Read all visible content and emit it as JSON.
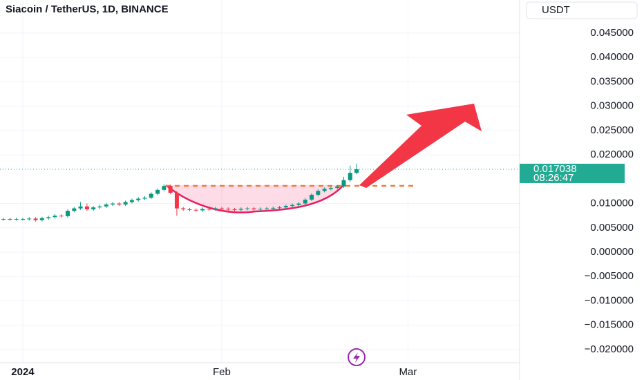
{
  "chart_data": {
    "type": "candlestick",
    "title": "Siacoin / TetherUS, 1D, BINANCE",
    "currency": "USDT",
    "countdown": "08:26:47",
    "up_color": "#089981",
    "down_color": "#f23645",
    "x": [
      -3,
      -2,
      -1,
      0,
      1,
      2,
      3,
      4,
      5,
      6,
      7,
      8,
      9,
      10,
      11,
      12,
      13,
      14,
      15,
      16,
      17,
      18,
      19,
      20,
      21,
      22,
      23,
      24,
      25,
      26,
      27,
      28,
      29,
      30,
      31,
      32,
      33,
      34,
      35,
      36,
      37,
      38,
      39,
      40,
      41,
      42,
      43,
      44,
      45,
      46,
      47,
      48,
      49,
      50,
      51,
      52
    ],
    "open": [
      0.0068,
      0.0068,
      0.0068,
      0.0068,
      0.0068,
      0.0069,
      0.0066,
      0.007,
      0.0072,
      0.0075,
      0.0074,
      0.0085,
      0.009,
      0.0094,
      0.0088,
      0.0092,
      0.0094,
      0.0098,
      0.01,
      0.0098,
      0.0103,
      0.0107,
      0.011,
      0.0112,
      0.012,
      0.0128,
      0.0136,
      0.0122,
      0.009,
      0.0088,
      0.0087,
      0.0086,
      0.0089,
      0.0088,
      0.009,
      0.0089,
      0.0088,
      0.0087,
      0.0089,
      0.009,
      0.0088,
      0.0089,
      0.009,
      0.0091,
      0.0092,
      0.0095,
      0.0097,
      0.01,
      0.0108,
      0.0118,
      0.0126,
      0.013,
      0.0132,
      0.0135,
      0.0148,
      0.0163
    ],
    "high": [
      0.0071,
      0.0071,
      0.0071,
      0.0071,
      0.0072,
      0.0072,
      0.0073,
      0.0075,
      0.0078,
      0.0078,
      0.0088,
      0.0093,
      0.0103,
      0.01,
      0.0095,
      0.0097,
      0.0101,
      0.0103,
      0.0103,
      0.0106,
      0.011,
      0.0113,
      0.0115,
      0.0123,
      0.0131,
      0.014,
      0.0139,
      0.0125,
      0.0093,
      0.0091,
      0.009,
      0.0092,
      0.0092,
      0.0093,
      0.0093,
      0.0092,
      0.0091,
      0.0092,
      0.0093,
      0.0093,
      0.0092,
      0.0093,
      0.0094,
      0.0095,
      0.0098,
      0.01,
      0.0103,
      0.0111,
      0.0121,
      0.0129,
      0.0133,
      0.0135,
      0.0138,
      0.0155,
      0.0178,
      0.0182
    ],
    "low": [
      0.0065,
      0.0065,
      0.0065,
      0.0065,
      0.0065,
      0.0063,
      0.0063,
      0.0067,
      0.0069,
      0.0071,
      0.0071,
      0.0082,
      0.0087,
      0.0085,
      0.0085,
      0.0089,
      0.0091,
      0.0095,
      0.0095,
      0.0095,
      0.01,
      0.0104,
      0.0107,
      0.0109,
      0.0117,
      0.0125,
      0.0119,
      0.0075,
      0.0085,
      0.0084,
      0.0083,
      0.0083,
      0.0085,
      0.0085,
      0.0086,
      0.0085,
      0.0084,
      0.0084,
      0.0086,
      0.0085,
      0.0085,
      0.0086,
      0.0087,
      0.0088,
      0.0089,
      0.0092,
      0.0094,
      0.0097,
      0.0105,
      0.0115,
      0.0123,
      0.0127,
      0.0129,
      0.0132,
      0.0145,
      0.016
    ],
    "close": [
      0.0068,
      0.0068,
      0.0068,
      0.0068,
      0.0069,
      0.0066,
      0.007,
      0.0072,
      0.0075,
      0.0074,
      0.0085,
      0.009,
      0.0094,
      0.0088,
      0.0092,
      0.0094,
      0.0098,
      0.01,
      0.0098,
      0.0103,
      0.0107,
      0.011,
      0.0112,
      0.012,
      0.0128,
      0.0136,
      0.0122,
      0.009,
      0.0088,
      0.0087,
      0.0086,
      0.0089,
      0.0088,
      0.009,
      0.0089,
      0.0088,
      0.0087,
      0.0089,
      0.009,
      0.0088,
      0.0089,
      0.009,
      0.0091,
      0.0092,
      0.0095,
      0.0097,
      0.01,
      0.0108,
      0.0118,
      0.0126,
      0.013,
      0.0132,
      0.0135,
      0.0148,
      0.0163,
      0.017038
    ],
    "xlim": [
      -3.55,
      77.4
    ],
    "ylim": [
      -0.0227,
      0.0518
    ],
    "xticks": [
      {
        "value": 0,
        "label": "2024"
      },
      {
        "value": 31,
        "label": "Feb"
      },
      {
        "value": 60,
        "label": "Mar"
      }
    ],
    "yticks": [
      {
        "value": 0.045,
        "label": "0.045000"
      },
      {
        "value": 0.04,
        "label": "0.040000"
      },
      {
        "value": 0.035,
        "label": "0.035000"
      },
      {
        "value": 0.03,
        "label": "0.030000"
      },
      {
        "value": 0.025,
        "label": "0.025000"
      },
      {
        "value": 0.02,
        "label": "0.020000"
      },
      {
        "value": 0.01,
        "label": "0.010000"
      },
      {
        "value": 0.005,
        "label": "0.005000"
      },
      {
        "value": 0,
        "label": "0.000000"
      },
      {
        "value": -0.005,
        "label": "−0.005000"
      },
      {
        "value": -0.01,
        "label": "−0.010000"
      },
      {
        "value": -0.015,
        "label": "−0.015000"
      },
      {
        "value": -0.02,
        "label": "−0.020000"
      }
    ],
    "grid": true
  }
}
